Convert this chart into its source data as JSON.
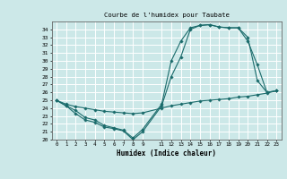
{
  "title": "Courbe de l'humidex pour Taubate",
  "xlabel": "Humidex (Indice chaleur)",
  "background_color": "#cce8e8",
  "grid_color": "#ffffff",
  "line_color": "#1a6b6b",
  "xlim": [
    -0.5,
    23.5
  ],
  "ylim": [
    20,
    35
  ],
  "xticks": [
    0,
    1,
    2,
    3,
    4,
    5,
    6,
    7,
    8,
    9,
    11,
    12,
    13,
    14,
    15,
    16,
    17,
    18,
    19,
    20,
    21,
    22,
    23
  ],
  "yticks": [
    20,
    21,
    22,
    23,
    24,
    25,
    26,
    27,
    28,
    29,
    30,
    31,
    32,
    33,
    34
  ],
  "series": [
    {
      "x": [
        0,
        1,
        2,
        3,
        4,
        5,
        6,
        7,
        8,
        9,
        11,
        12,
        13,
        14,
        15,
        16,
        17,
        18,
        19,
        20,
        21,
        22,
        23
      ],
      "y": [
        25.0,
        24.3,
        23.7,
        22.8,
        22.5,
        21.8,
        21.5,
        21.2,
        20.2,
        21.3,
        24.5,
        30.0,
        32.5,
        34.2,
        34.5,
        34.6,
        34.3,
        34.2,
        34.2,
        33.0,
        27.5,
        26.0,
        26.2
      ]
    },
    {
      "x": [
        0,
        1,
        2,
        3,
        4,
        5,
        6,
        7,
        8,
        9,
        11,
        12,
        13,
        14,
        15,
        16,
        17,
        18,
        19,
        20,
        21,
        22,
        23
      ],
      "y": [
        25.0,
        24.3,
        23.3,
        22.5,
        22.2,
        21.6,
        21.4,
        21.1,
        20.0,
        21.0,
        24.3,
        28.0,
        30.5,
        34.0,
        34.5,
        34.6,
        34.3,
        34.2,
        34.2,
        32.5,
        29.5,
        26.0,
        26.2
      ]
    },
    {
      "x": [
        0,
        1,
        2,
        3,
        4,
        5,
        6,
        7,
        8,
        9,
        11,
        12,
        13,
        14,
        15,
        16,
        17,
        18,
        19,
        20,
        21,
        22,
        23
      ],
      "y": [
        25.0,
        24.5,
        24.2,
        24.0,
        23.8,
        23.6,
        23.5,
        23.4,
        23.3,
        23.4,
        24.0,
        24.3,
        24.5,
        24.7,
        24.9,
        25.0,
        25.1,
        25.2,
        25.4,
        25.5,
        25.7,
        25.9,
        26.2
      ]
    }
  ]
}
